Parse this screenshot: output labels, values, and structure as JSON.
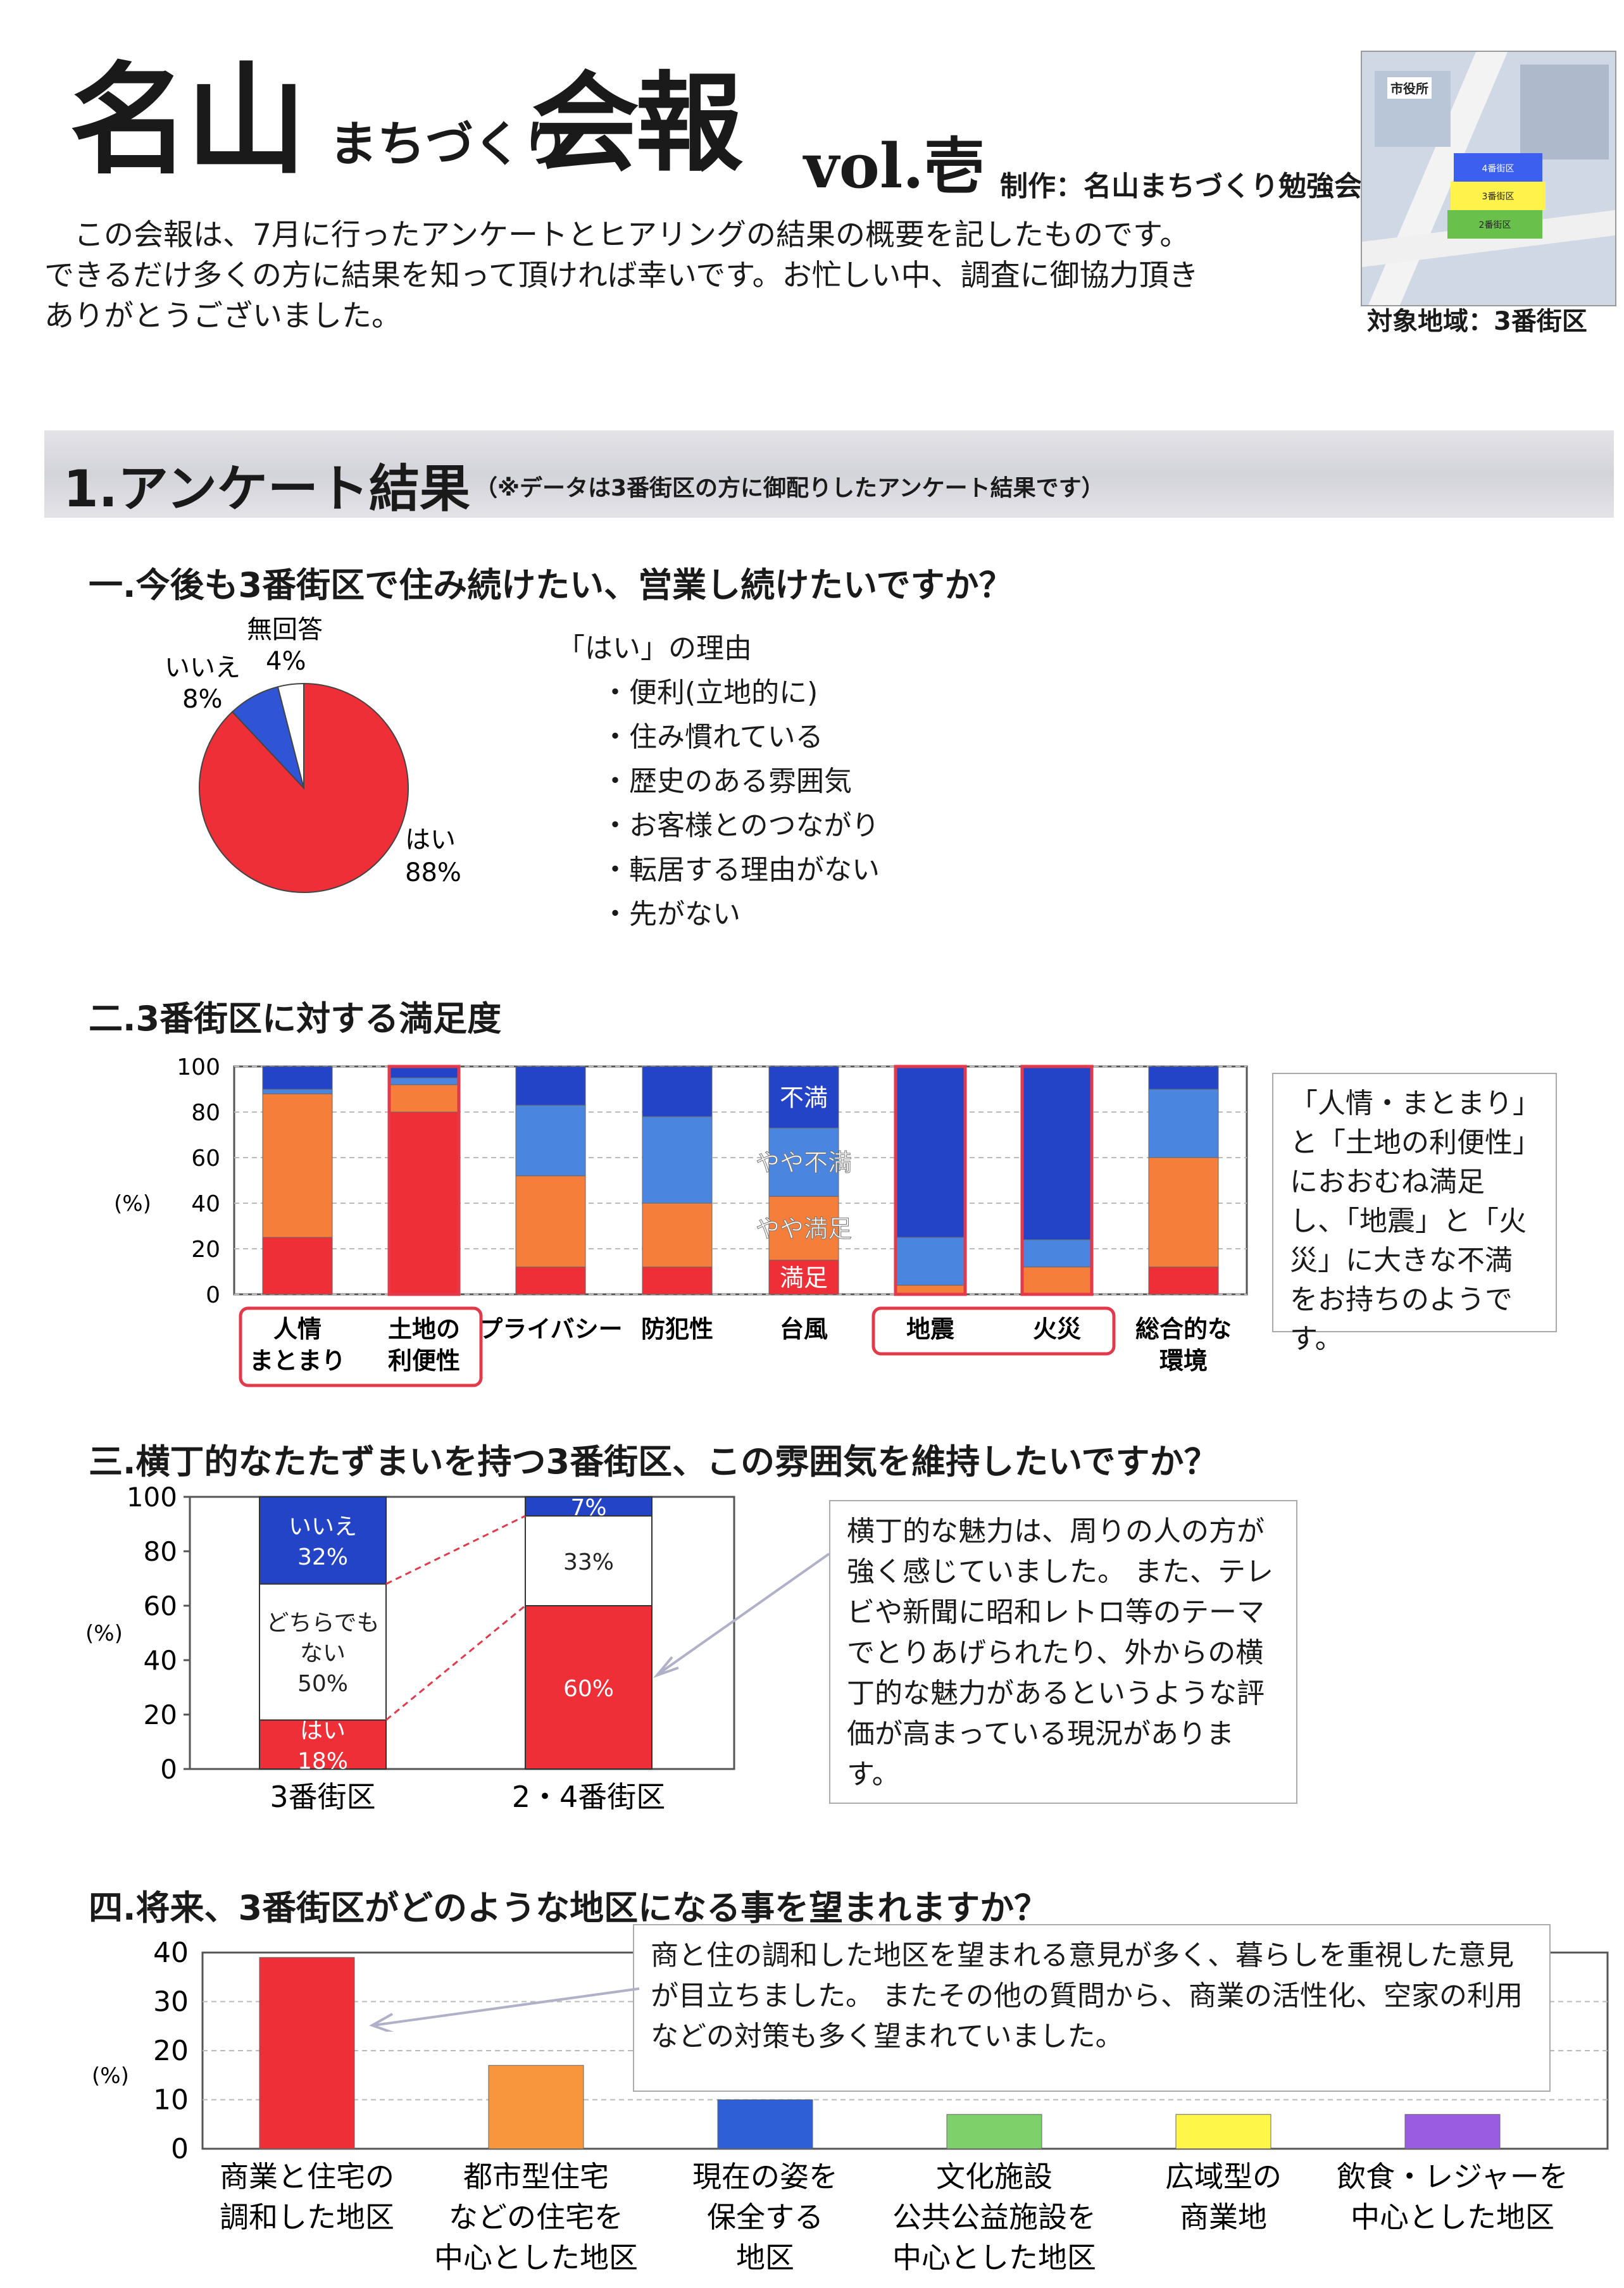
{
  "header": {
    "logo_name": "名山",
    "logo_sub": "まちづくり",
    "logo_title": "会報",
    "volume": "vol.壱",
    "maker": "制作：名山まちづくり勉強会",
    "intro": [
      "この会報は、7月に行ったアンケートとヒアリングの結果の概要を記したものです。",
      "できるだけ多くの方に結果を知って頂ければ幸いです。お忙しい中、調査に御協力頂き",
      "ありがとうございました。"
    ],
    "map_labels": [
      "市役所",
      "4番街区",
      "3番街区",
      "2番街区"
    ],
    "map_caption": "対象地域：3番街区"
  },
  "section": {
    "title": "1.アンケート結果",
    "note": "（※データは3番街区の方に御配りしたアンケート結果です）"
  },
  "q1": {
    "title": "一.今後も3番街区で住み続けたい、営業し続けたいですか？",
    "reasons_title": "「はい」の理由",
    "reasons": [
      "・便利(立地的に)",
      "・住み慣れている",
      "・歴史のある雰囲気",
      "・お客様とのつながり",
      "・転居する理由がない",
      "・先がない"
    ],
    "chart_data": {
      "type": "pie",
      "slices": [
        {
          "label": "はい",
          "value": 88,
          "display": "88%",
          "color": "#ee2f37"
        },
        {
          "label": "いいえ",
          "value": 8,
          "display": "8%",
          "color": "#2f54d6"
        },
        {
          "label": "無回答",
          "value": 4,
          "display": "4%",
          "color": "#ffffff"
        }
      ]
    }
  },
  "q2": {
    "title": "二.3番街区に対する満足度",
    "comment": "「人情・まとまり」と「土地の利便性」におおむね満足し、「地震」と「火災」に大きな不満をお持ちのようです。",
    "chart_data": {
      "type": "bar",
      "stacked": true,
      "categories": [
        "人情まとまり",
        "土地の利便性",
        "プライバシー",
        "防犯性",
        "台風",
        "地震",
        "火災",
        "総合的な環境"
      ],
      "category_labels": [
        [
          "人情",
          "まとまり"
        ],
        [
          "土地の",
          "利便性"
        ],
        [
          "プライバシー"
        ],
        [
          "防犯性"
        ],
        [
          "台風"
        ],
        [
          "地震"
        ],
        [
          "火災"
        ],
        [
          "総合的な",
          "環境"
        ]
      ],
      "series": [
        {
          "name": "満足",
          "color": "#ee2f37",
          "values": [
            25,
            80,
            12,
            12,
            15,
            0,
            0,
            12
          ]
        },
        {
          "name": "やや満足",
          "color": "#f57f3a",
          "values": [
            63,
            12,
            40,
            28,
            28,
            4,
            12,
            48
          ]
        },
        {
          "name": "やや不満",
          "color": "#4a86e0",
          "values": [
            2,
            3,
            31,
            38,
            30,
            21,
            12,
            30
          ]
        },
        {
          "name": "不満",
          "color": "#2444c8",
          "values": [
            10,
            5,
            17,
            22,
            27,
            75,
            76,
            10
          ]
        }
      ],
      "ylabel": "(%)",
      "yticks": [
        0,
        20,
        40,
        60,
        80,
        100
      ],
      "ylim": [
        0,
        100
      ],
      "highlight_groups": [
        [
          0,
          1
        ],
        [
          5,
          6
        ]
      ]
    }
  },
  "q3": {
    "title": "三.横丁的なたたずまいを持つ3番街区、この雰囲気を維持したいですか？",
    "comment": "横丁的な魅力は、周りの人の方が強く感じていました。 また、テレビや新聞に昭和レトロ等のテーマでとりあげられたり、外からの横丁的な魅力があるというような評価が高まっている現況があります。",
    "chart_data": {
      "type": "bar",
      "stacked": true,
      "categories": [
        "3番街区",
        "2・4番街区"
      ],
      "series": [
        {
          "name": "はい",
          "color": "#ee2f37",
          "values": [
            18,
            60
          ],
          "labels": [
            [
              "はい",
              "18%"
            ],
            [
              "60%"
            ]
          ]
        },
        {
          "name": "どちらでもない",
          "color": "#ffffff",
          "values": [
            50,
            33
          ],
          "labels": [
            [
              "どちらでも",
              "ない",
              "50%"
            ],
            [
              "33%"
            ]
          ]
        },
        {
          "name": "いいえ",
          "color": "#2444c8",
          "values": [
            32,
            7
          ],
          "labels": [
            [
              "いいえ",
              "32%"
            ],
            [
              "7%"
            ]
          ]
        }
      ],
      "ylabel": "(%)",
      "yticks": [
        0,
        20,
        40,
        60,
        80,
        100
      ],
      "ylim": [
        0,
        100
      ]
    }
  },
  "q4": {
    "title": "四.将来、3番街区がどのような地区になる事を望まれますか？",
    "comment": "商と住の調和した地区を望まれる意見が多く、暮らしを重視した意見が目立ちました。 またその他の質問から、商業の活性化、空家の利用などの対策も多く望まれていました。",
    "chart_data": {
      "type": "bar",
      "categories": [
        "商業と住宅の調和した地区",
        "都市型住宅などの住宅を中心とした地区",
        "現在の姿を保全する地区",
        "文化施設公共公益施設を中心とした地区",
        "広域型の商業地",
        "飲食・レジャーを中心とした地区"
      ],
      "category_labels": [
        [
          "商業と住宅の",
          "調和した地区"
        ],
        [
          "都市型住宅",
          "などの住宅を",
          "中心とした地区"
        ],
        [
          "現在の姿を",
          "保全する",
          "地区"
        ],
        [
          "文化施設",
          "公共公益施設を",
          "中心とした地区"
        ],
        [
          "広域型の",
          "商業地"
        ],
        [
          "飲食・レジャーを",
          "中心とした地区"
        ]
      ],
      "values": [
        39,
        17,
        10,
        7,
        7,
        7
      ],
      "colors": [
        "#ee2f37",
        "#f7963c",
        "#2f5fd6",
        "#7ed06a",
        "#fff64a",
        "#9a5ce0"
      ],
      "ylabel": "(%)",
      "yticks": [
        0,
        10,
        20,
        30,
        40
      ],
      "ylim": [
        0,
        40
      ]
    }
  }
}
